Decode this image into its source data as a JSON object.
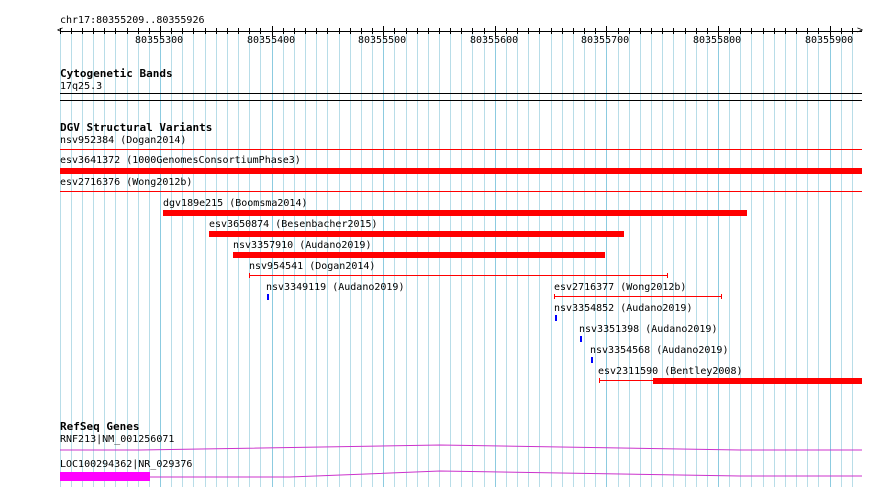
{
  "ruler": {
    "locus": "chr17:80355209..80355926",
    "ticks": [
      "80355300",
      "80355400",
      "80355500",
      "80355600",
      "80355700",
      "80355800",
      "80355900"
    ],
    "left_arrow": "<",
    "right_arrow": ">"
  },
  "cytoband": {
    "title": "Cytogenetic Bands",
    "band": "17q25.3"
  },
  "dgv": {
    "title": "DGV Structural Variants",
    "variants": [
      "nsv952384 (Dogan2014)",
      "esv3641372 (1000GenomesConsortiumPhase3)",
      "esv2716376 (Wong2012b)",
      "dgv189e215 (Boomsma2014)",
      "esv3650874 (Besenbacher2015)",
      "nsv3357910 (Audano2019)",
      "nsv954541 (Dogan2014)",
      "nsv3349119 (Audano2019)",
      "esv2716377 (Wong2012b)",
      "nsv3354852 (Audano2019)",
      "nsv3351398 (Audano2019)",
      "nsv3354568 (Audano2019)",
      "esv2311590 (Bentley2008)"
    ]
  },
  "refseq": {
    "title": "RefSeq Genes",
    "genes": [
      "RNF213|NM_001256071",
      "LOC100294362|NR_029376"
    ]
  },
  "colors": {
    "variant": "#ff0000",
    "small_variant": "#0000ff",
    "gene": "#cc33cc",
    "gene_block": "#ff00ff",
    "grid": "#b8dde8"
  }
}
